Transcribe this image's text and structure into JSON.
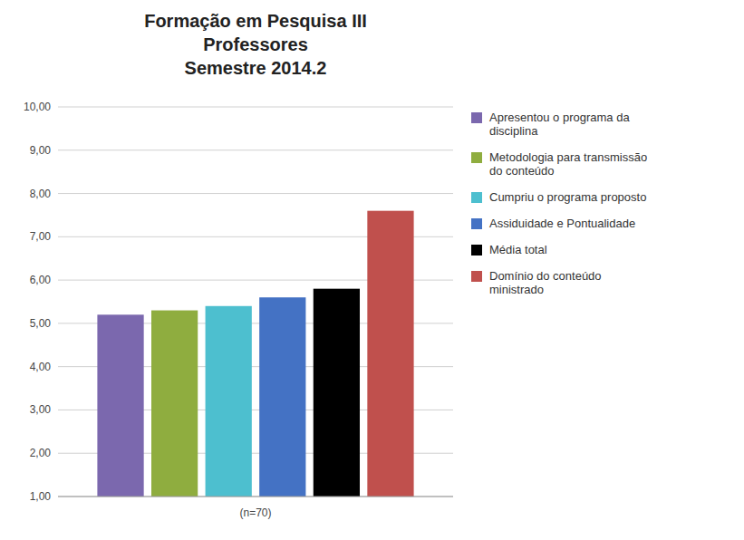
{
  "chart_data": {
    "type": "bar",
    "title": "Formação em Pesquisa III\nProfessores\nSemestre 2014.2",
    "categories": [
      "(n=70)"
    ],
    "series": [
      {
        "name": "Apresentou o programa da\ndisciplina",
        "color": "#7B68AE",
        "values": [
          5.2
        ]
      },
      {
        "name": "Metodologia para transmissão\ndo conteúdo",
        "color": "#8FAD3F",
        "values": [
          5.3
        ]
      },
      {
        "name": "Cumpriu o programa proposto",
        "color": "#4DBFCF",
        "values": [
          5.4
        ]
      },
      {
        "name": "Assiduidade e Pontualidade",
        "color": "#4472C4",
        "values": [
          5.6
        ]
      },
      {
        "name": "Média total",
        "color": "#000000",
        "values": [
          5.8
        ]
      },
      {
        "name": "Domínio do conteúdo\nministrado",
        "color": "#C0504D",
        "values": [
          7.6
        ]
      }
    ],
    "ylim": [
      1.0,
      10.0
    ],
    "yticks": [
      {
        "value": 1.0,
        "label": "1,00"
      },
      {
        "value": 2.0,
        "label": "2,00"
      },
      {
        "value": 3.0,
        "label": "3,00"
      },
      {
        "value": 4.0,
        "label": "4,00"
      },
      {
        "value": 5.0,
        "label": "5,00"
      },
      {
        "value": 6.0,
        "label": "6,00"
      },
      {
        "value": 7.0,
        "label": "7,00"
      },
      {
        "value": 8.0,
        "label": "8,00"
      },
      {
        "value": 9.0,
        "label": "9,00"
      },
      {
        "value": 10.0,
        "label": "10,00"
      }
    ],
    "grid": true,
    "legend": "right"
  }
}
